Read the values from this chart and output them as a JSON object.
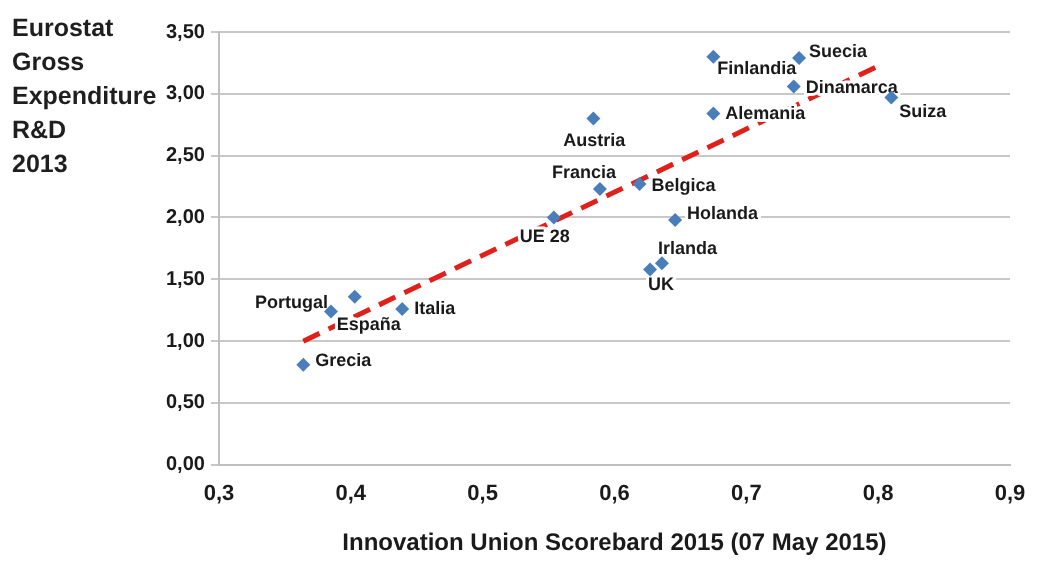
{
  "chart_data": {
    "type": "scatter",
    "title": "Eurostat Gross Expenditure R&D 2013",
    "xlabel": "Innovation Union Scorebard 2015 (07 May 2015)",
    "series": [
      {
        "color": "#4a7ebb",
        "marker": "diamond",
        "x": [
          0.584,
          0.589,
          0.554,
          0.675,
          0.74,
          0.736,
          0.81,
          0.675,
          0.619,
          0.646,
          0.636,
          0.627,
          0.385,
          0.403,
          0.439,
          0.364
        ],
        "values": [
          2.8,
          2.23,
          2.0,
          3.3,
          3.29,
          3.06,
          2.97,
          2.84,
          2.27,
          1.98,
          1.63,
          1.58,
          1.24,
          1.36,
          1.26,
          0.81
        ]
      },
      {
        "type": "line",
        "color": "#e0201b",
        "line_style": "dashed",
        "marker": "none",
        "x": [
          0.364,
          0.799
        ],
        "values": [
          1.0,
          3.22
        ]
      }
    ],
    "annotations": [
      {
        "text": "Austria",
        "x": 0.584,
        "y": 2.8
      },
      {
        "text": "Francia",
        "x": 0.589,
        "y": 2.23
      },
      {
        "text": "UE 28",
        "x": 0.554,
        "y": 2.0
      },
      {
        "text": "Finlandia",
        "x": 0.675,
        "y": 3.3
      },
      {
        "text": "Suecia",
        "x": 0.74,
        "y": 3.29
      },
      {
        "text": "Dinamarca",
        "x": 0.736,
        "y": 3.06
      },
      {
        "text": "Suiza",
        "x": 0.81,
        "y": 2.97
      },
      {
        "text": "Alemania",
        "x": 0.675,
        "y": 2.84
      },
      {
        "text": "Belgica",
        "x": 0.619,
        "y": 2.27
      },
      {
        "text": "Holanda",
        "x": 0.646,
        "y": 1.98
      },
      {
        "text": "Irlanda",
        "x": 0.636,
        "y": 1.63
      },
      {
        "text": "UK",
        "x": 0.627,
        "y": 1.58
      },
      {
        "text": "Portugal",
        "x": 0.385,
        "y": 1.24
      },
      {
        "text": "España",
        "x": 0.403,
        "y": 1.36
      },
      {
        "text": "Italia",
        "x": 0.439,
        "y": 1.26
      },
      {
        "text": "Grecia",
        "x": 0.364,
        "y": 0.81
      }
    ],
    "xlim": [
      0.3,
      0.9
    ],
    "xticks": [
      {
        "value": 0.3,
        "label": "0,3"
      },
      {
        "value": 0.4,
        "label": "0,4"
      },
      {
        "value": 0.5,
        "label": "0,5"
      },
      {
        "value": 0.6,
        "label": "0,6"
      },
      {
        "value": 0.7,
        "label": "0,7"
      },
      {
        "value": 0.8,
        "label": "0,8"
      },
      {
        "value": 0.9,
        "label": "0,9"
      }
    ],
    "ylim": [
      0,
      3.5
    ],
    "yticks": [
      {
        "value": 0,
        "label": "0,00"
      },
      {
        "value": 0.5,
        "label": "0,50"
      },
      {
        "value": 1,
        "label": "1,00"
      },
      {
        "value": 1.5,
        "label": "1,50"
      },
      {
        "value": 2,
        "label": "2,00"
      },
      {
        "value": 2.5,
        "label": "2,50"
      },
      {
        "value": 3,
        "label": "3,00"
      },
      {
        "value": 3.5,
        "label": "3,50"
      }
    ],
    "grid": "y",
    "legend": false
  }
}
